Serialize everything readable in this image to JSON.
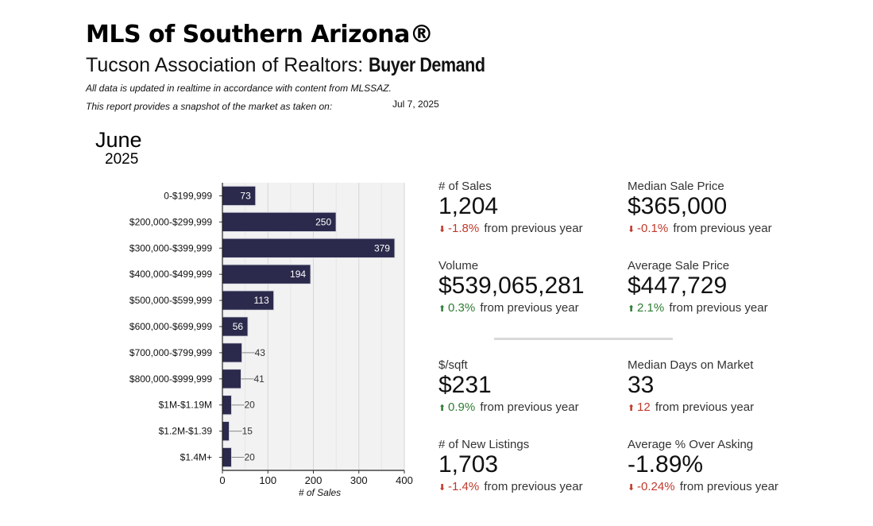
{
  "header": {
    "title": "MLS of Southern Arizona®",
    "subtitle_prefix": "Tucson Association of Realtors: ",
    "subtitle_bold": "Buyer Demand",
    "note1": "All data is updated in realtime in accordance with content from MLSSAZ.",
    "note2": "This report provides a snapshot of the market as taken on:",
    "snapshot_date": "Jul 7, 2025"
  },
  "period": {
    "month": "June",
    "year": "2025"
  },
  "chart_data": {
    "type": "bar",
    "orientation": "horizontal",
    "categories": [
      "0-$199,999",
      "$200,000-$299,999",
      "$300,000-$399,999",
      "$400,000-$499,999",
      "$500,000-$599,999",
      "$600,000-$699,999",
      "$700,000-$799,999",
      "$800,000-$999,999",
      "$1M-$1.19M",
      "$1.2M-$1.39",
      "$1.4M+"
    ],
    "values": [
      73,
      250,
      379,
      194,
      113,
      56,
      43,
      41,
      20,
      15,
      20
    ],
    "xlabel": "# of Sales",
    "ylabel": "",
    "xlim": [
      0,
      400
    ],
    "xticks": [
      0,
      100,
      200,
      300,
      400
    ],
    "grid": true,
    "bar_color": "#2b2a4c"
  },
  "metrics": [
    {
      "label": "# of Sales",
      "value": "1,204",
      "direction": "down",
      "change": "-1.8%",
      "suffix": "from previous year"
    },
    {
      "label": "Median Sale Price",
      "value": "$365,000",
      "direction": "down",
      "change": "-0.1%",
      "suffix": "from previous year"
    },
    {
      "label": "Volume",
      "value": "$539,065,281",
      "direction": "up",
      "change": "0.3%",
      "suffix": "from previous year"
    },
    {
      "label": "Average Sale Price",
      "value": "$447,729",
      "direction": "up",
      "change": "2.1%",
      "suffix": "from previous year"
    },
    {
      "label": "$/sqft",
      "value": "$231",
      "direction": "up",
      "change": "0.9%",
      "suffix": "from previous year"
    },
    {
      "label": "Median Days on Market",
      "value": "33",
      "direction": "upbad",
      "change": "12",
      "suffix": "from previous year"
    },
    {
      "label": "# of New Listings",
      "value": "1,703",
      "direction": "down",
      "change": "-1.4%",
      "suffix": "from previous year"
    },
    {
      "label": "Average % Over Asking",
      "value": "-1.89%",
      "direction": "down",
      "change": "-0.24%",
      "suffix": "from previous year"
    }
  ],
  "icons": {
    "down": "down-arrow-icon",
    "up": "up-arrow-icon"
  },
  "colors": {
    "down": "#c0392b",
    "up": "#2e7d32",
    "bar": "#2b2a4c",
    "plot_bg": "#f2f2f2"
  }
}
